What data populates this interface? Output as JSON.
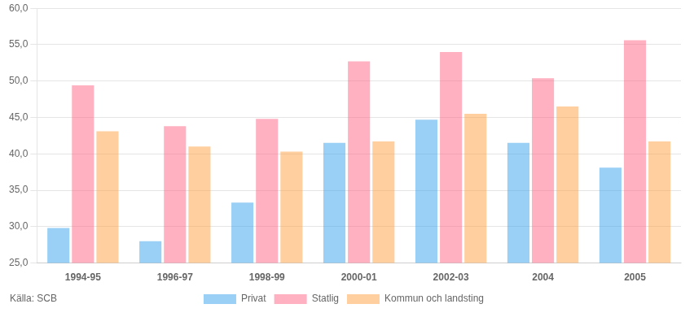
{
  "chart_data": {
    "type": "bar",
    "categories": [
      "1994-95",
      "1996-97",
      "1998-99",
      "2000-01",
      "2002-03",
      "2004",
      "2005"
    ],
    "series": [
      {
        "name": "Privat",
        "values": [
          29.8,
          28.0,
          33.3,
          41.5,
          44.7,
          41.5,
          38.1
        ]
      },
      {
        "name": "Statlig",
        "values": [
          49.4,
          43.8,
          44.8,
          52.7,
          54.0,
          50.4,
          55.6
        ]
      },
      {
        "name": "Kommun och landsting",
        "values": [
          43.1,
          41.0,
          40.3,
          41.7,
          45.5,
          46.5,
          41.7
        ]
      }
    ],
    "ylim": [
      25.0,
      60.0
    ],
    "yticks": [
      {
        "value": 25.0,
        "label": "25,0"
      },
      {
        "value": 30.0,
        "label": "30,0"
      },
      {
        "value": 35.0,
        "label": "35,0"
      },
      {
        "value": 40.0,
        "label": "40,0"
      },
      {
        "value": 45.0,
        "label": "45,0"
      },
      {
        "value": 50.0,
        "label": "50,0"
      },
      {
        "value": 55.0,
        "label": "55,0"
      },
      {
        "value": 60.0,
        "label": "60,0"
      }
    ],
    "grid": true,
    "legend": "bottom",
    "annotations": [
      "Källa: SCB"
    ]
  }
}
